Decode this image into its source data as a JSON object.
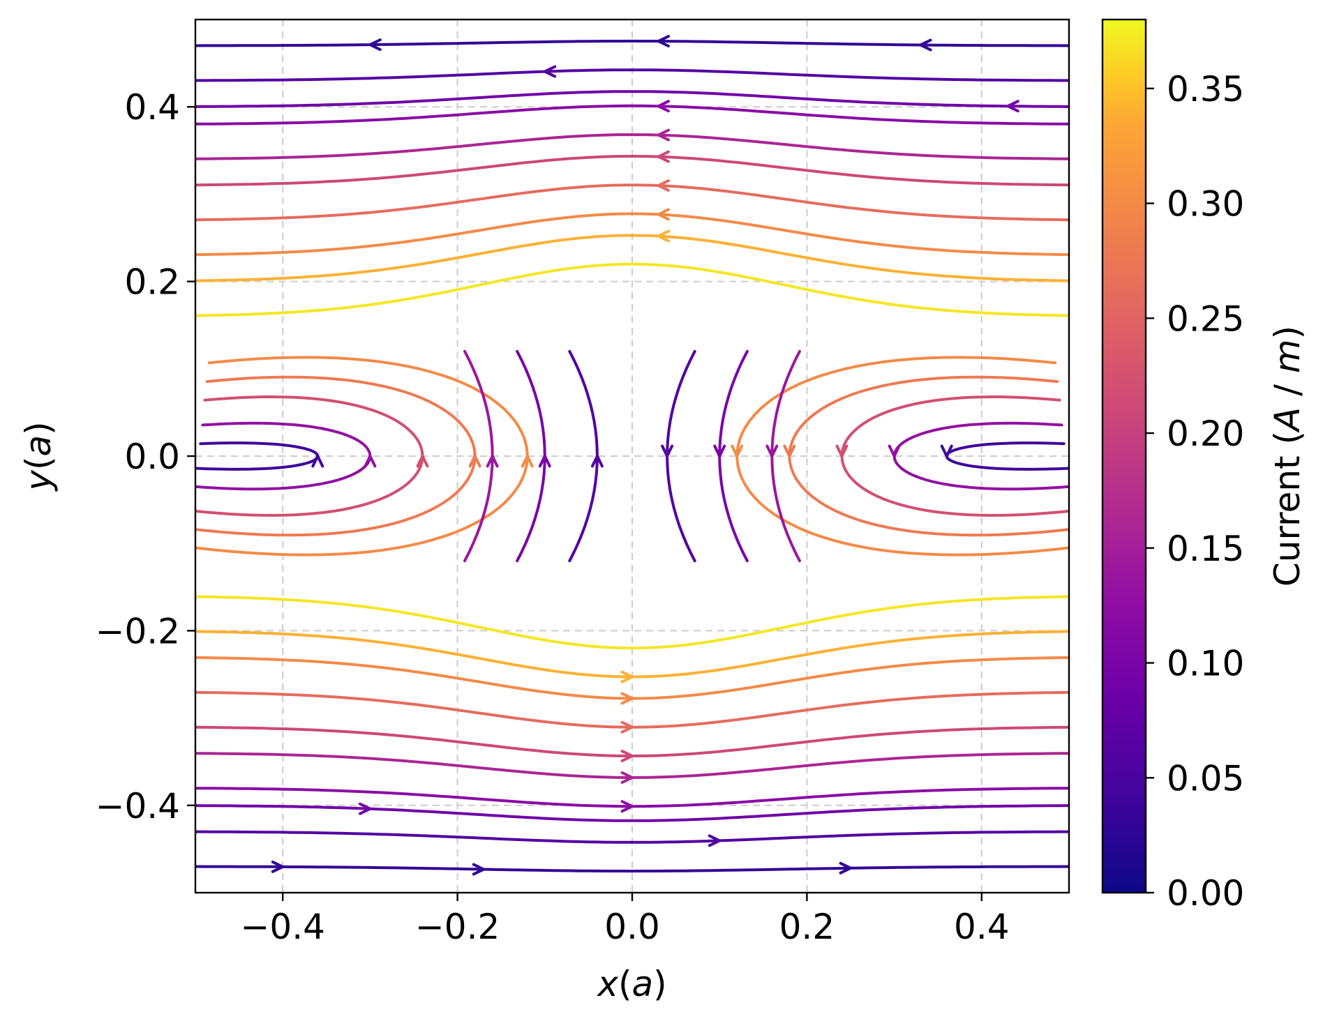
{
  "chart_data": {
    "type": "streamplot",
    "title": "",
    "xlabel": "x(a)",
    "ylabel": "y(a)",
    "xlim": [
      -0.5,
      0.5
    ],
    "ylim": [
      -0.5,
      0.5
    ],
    "grid": true,
    "x_ticks": [
      -0.4,
      -0.2,
      0.0,
      0.2,
      0.4
    ],
    "y_ticks": [
      -0.4,
      -0.2,
      0.0,
      0.2,
      0.4
    ],
    "x_tick_labels": [
      "−0.4",
      "−0.2",
      "0.0",
      "0.2",
      "0.4"
    ],
    "y_tick_labels": [
      "−0.4",
      "−0.2",
      "0.0",
      "0.2",
      "0.4"
    ],
    "field": {
      "description": "Current density between two opposing vortex-like sources at (-0.36, 0) and (0.36, 0); flow leftward above y=0 and rightward below",
      "sources": [
        {
          "x": -0.36,
          "y": 0.0
        },
        {
          "x": 0.36,
          "y": 0.0
        }
      ],
      "max_magnitude": 0.38
    },
    "colorbar": {
      "label": "Current  (A / m)",
      "label_plain": "Current",
      "label_unit": "(A / m)",
      "colormap": "plasma",
      "range": [
        0.0,
        0.38
      ],
      "ticks": [
        0.0,
        0.05,
        0.1,
        0.15,
        0.2,
        0.25,
        0.3,
        0.35
      ],
      "tick_labels": [
        "0.00",
        "0.05",
        "0.10",
        "0.15",
        "0.20",
        "0.25",
        "0.30",
        "0.35"
      ]
    },
    "streamlines": [
      {
        "y0": 0.47,
        "mag": 0.03,
        "arrows": [
          -0.3,
          0.03,
          0.33
        ]
      },
      {
        "y0": 0.43,
        "mag": 0.06,
        "arrows": [
          -0.1
        ]
      },
      {
        "y0": 0.4,
        "mag": 0.09,
        "arrows": [
          0.43
        ]
      },
      {
        "y0": 0.38,
        "mag": 0.12,
        "arrows": [
          0.03
        ]
      },
      {
        "y0": 0.34,
        "mag": 0.16,
        "arrows": [
          0.03
        ]
      },
      {
        "y0": 0.31,
        "mag": 0.21,
        "arrows": [
          0.03
        ]
      },
      {
        "y0": 0.27,
        "mag": 0.26,
        "arrows": [
          0.03
        ]
      },
      {
        "y0": 0.23,
        "mag": 0.3,
        "arrows": [
          0.03
        ]
      },
      {
        "y0": 0.2,
        "mag": 0.34,
        "arrows": [
          0.03
        ]
      },
      {
        "y0": 0.16,
        "mag": 0.37,
        "arrows": []
      },
      {
        "y0": -0.16,
        "mag": 0.37,
        "arrows": []
      },
      {
        "y0": -0.2,
        "mag": 0.34,
        "arrows": [
          0.0
        ]
      },
      {
        "y0": -0.23,
        "mag": 0.3,
        "arrows": [
          0.0
        ]
      },
      {
        "y0": -0.27,
        "mag": 0.26,
        "arrows": [
          0.0
        ]
      },
      {
        "y0": -0.31,
        "mag": 0.21,
        "arrows": [
          0.0
        ]
      },
      {
        "y0": -0.34,
        "mag": 0.16,
        "arrows": [
          0.0
        ]
      },
      {
        "y0": -0.38,
        "mag": 0.12,
        "arrows": [
          0.0
        ]
      },
      {
        "y0": -0.4,
        "mag": 0.09,
        "arrows": [
          -0.3
        ]
      },
      {
        "y0": -0.43,
        "mag": 0.06,
        "arrows": [
          0.1
        ]
      },
      {
        "y0": -0.47,
        "mag": 0.03,
        "arrows": [
          -0.4,
          -0.17,
          0.25
        ]
      }
    ]
  }
}
